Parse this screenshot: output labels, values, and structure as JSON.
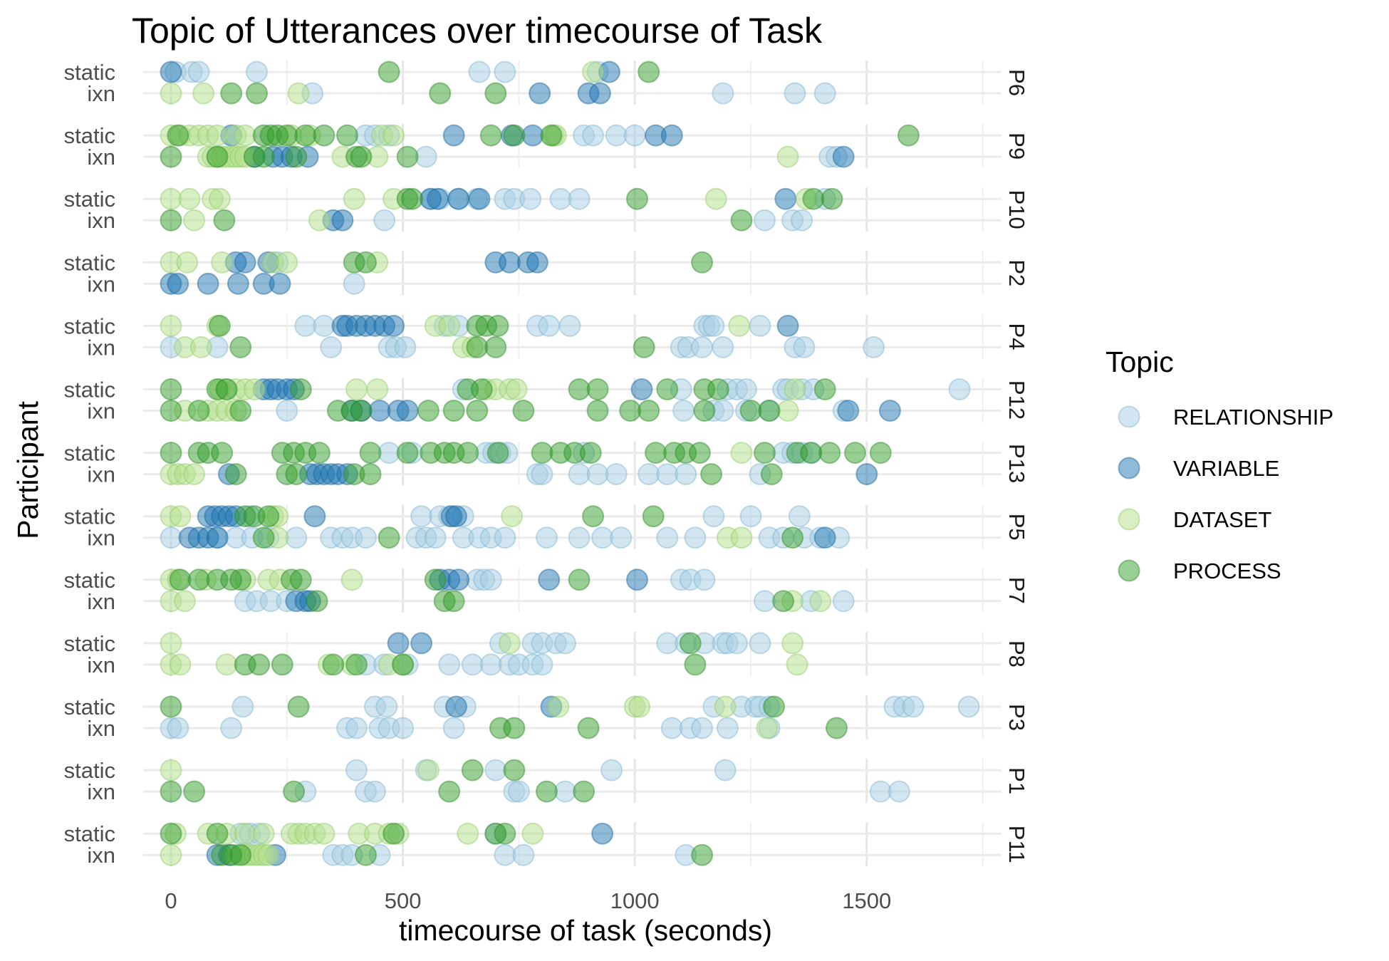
{
  "chart_data": {
    "type": "scatter",
    "title": "Topic of Utterances over timecourse of Task",
    "xlabel": "timecourse of task (seconds)",
    "ylabel": "Participant",
    "xlim": [
      -60,
      1790
    ],
    "xticks": [
      0,
      500,
      1000,
      1500
    ],
    "xtick_labels": [
      "0",
      "500",
      "1000",
      "1500"
    ],
    "grid": true,
    "legend": {
      "title": "Topic",
      "placement": "right",
      "entries": [
        "RELATIONSHIP",
        "VARIABLE",
        "DATASET",
        "PROCESS"
      ]
    },
    "colors": {
      "RELATIONSHIP": "#a6cee3",
      "VARIABLE": "#1f78b4",
      "DATASET": "#b2df8a",
      "PROCESS": "#33a02c"
    },
    "conditions": [
      "static",
      "ixn"
    ],
    "panels": [
      {
        "participant": "P6",
        "static": {
          "RELATIONSHIP": [
            10,
            45,
            60,
            185,
            665,
            720,
            920
          ],
          "VARIABLE": [
            0,
            945
          ],
          "DATASET": [
            910
          ],
          "PROCESS": [
            470,
            1030
          ]
        },
        "ixn": {
          "RELATIONSHIP": [
            305,
            1190,
            1345,
            1410
          ],
          "VARIABLE": [
            795,
            900,
            925
          ],
          "DATASET": [
            0,
            70,
            275
          ],
          "PROCESS": [
            130,
            185,
            580,
            700
          ]
        }
      },
      {
        "participant": "P9",
        "static": {
          "RELATIONSHIP": [
            420,
            440,
            470,
            890,
            910,
            960,
            1000
          ],
          "VARIABLE": [
            130,
            610,
            735,
            780,
            1045,
            1080
          ],
          "DATASET": [
            0,
            20,
            40,
            60,
            80,
            100,
            140,
            160,
            260,
            300,
            455,
            480,
            825,
            830
          ],
          "PROCESS": [
            15,
            200,
            215,
            230,
            250,
            290,
            330,
            380,
            690,
            740,
            820,
            1590
          ]
        },
        "ixn": {
          "RELATIONSHIP": [
            550,
            1420,
            1435
          ],
          "VARIABLE": [
            180,
            220,
            240,
            260,
            295,
            1450
          ],
          "DATASET": [
            80,
            90,
            100,
            110,
            120,
            130,
            140,
            150,
            160,
            370,
            445,
            1330
          ],
          "PROCESS": [
            0,
            100,
            180,
            200,
            270,
            400,
            410,
            510
          ]
        }
      },
      {
        "participant": "P10",
        "static": {
          "RELATIONSHIP": [
            560,
            580,
            620,
            660,
            720,
            740,
            775,
            840,
            880,
            1410
          ],
          "VARIABLE": [
            560,
            575,
            620,
            665,
            1325
          ],
          "DATASET": [
            0,
            40,
            90,
            105,
            395,
            480,
            1175,
            1370
          ],
          "PROCESS": [
            510,
            520,
            1005,
            1385,
            1425
          ]
        },
        "ixn": {
          "RELATIONSHIP": [
            460,
            1280,
            1340,
            1360
          ],
          "VARIABLE": [
            350,
            370
          ],
          "DATASET": [
            50,
            320
          ],
          "PROCESS": [
            0,
            115,
            1230
          ]
        }
      },
      {
        "participant": "P2",
        "static": {
          "RELATIONSHIP": [
            230
          ],
          "VARIABLE": [
            140,
            160,
            210,
            700,
            730,
            770,
            790
          ],
          "DATASET": [
            0,
            35,
            110,
            220,
            250,
            445
          ],
          "PROCESS": [
            395,
            420,
            1145
          ]
        },
        "ixn": {
          "RELATIONSHIP": [
            395
          ],
          "VARIABLE": [
            0,
            15,
            80,
            145,
            200,
            235
          ],
          "DATASET": [],
          "PROCESS": []
        }
      },
      {
        "participant": "P4",
        "static": {
          "RELATIONSHIP": [
            290,
            330,
            590,
            620,
            790,
            815,
            860,
            1150,
            1160,
            1170,
            1270
          ],
          "VARIABLE": [
            370,
            380,
            400,
            420,
            440,
            460,
            480,
            1330
          ],
          "DATASET": [
            0,
            100,
            570,
            600,
            1225
          ],
          "PROCESS": [
            105,
            660,
            680,
            705
          ]
        },
        "ixn": {
          "RELATIONSHIP": [
            0,
            100,
            345,
            470,
            485,
            505,
            1100,
            1115,
            1145,
            1190,
            1345,
            1365,
            1515
          ],
          "VARIABLE": [],
          "DATASET": [
            30,
            65,
            630,
            650
          ],
          "PROCESS": [
            150,
            660,
            700,
            1020
          ]
        }
      },
      {
        "participant": "P12",
        "static": {
          "RELATIONSHIP": [
            630,
            1100,
            1200,
            1220,
            1240,
            1320,
            1330,
            1360,
            1385,
            1700
          ],
          "VARIABLE": [
            200,
            215,
            230,
            250,
            265,
            1015
          ],
          "DATASET": [
            105,
            120,
            140,
            160,
            180,
            400,
            445,
            680,
            700,
            730,
            745,
            1345
          ],
          "PROCESS": [
            0,
            100,
            120,
            280,
            640,
            670,
            880,
            920,
            1070,
            1150,
            1180,
            1410
          ]
        },
        "ixn": {
          "RELATIONSHIP": [
            250,
            1105,
            1170,
            1190,
            1240,
            1290,
            1450
          ],
          "VARIABLE": [
            390,
            410,
            450,
            490,
            510,
            1460,
            1550
          ],
          "DATASET": [
            30,
            80,
            100,
            120,
            140,
            1330
          ],
          "PROCESS": [
            0,
            60,
            150,
            360,
            390,
            410,
            555,
            610,
            660,
            760,
            920,
            990,
            1030,
            1150,
            1250,
            1290
          ]
        }
      },
      {
        "participant": "P13",
        "static": {
          "RELATIONSHIP": [
            470,
            520,
            680,
            695,
            710,
            725,
            890,
            1320,
            1340,
            1360,
            1380
          ],
          "VARIABLE": [],
          "DATASET": [
            1230
          ],
          "PROCESS": [
            0,
            60,
            80,
            110,
            240,
            265,
            290,
            320,
            430,
            510,
            560,
            590,
            610,
            640,
            705,
            800,
            840,
            870,
            905,
            1045,
            1085,
            1110,
            1140,
            1280,
            1350,
            1380,
            1420,
            1475,
            1530
          ]
        },
        "ixn": {
          "RELATIONSHIP": [
            790,
            800,
            880,
            920,
            960,
            1030,
            1070,
            1110,
            1270
          ],
          "VARIABLE": [
            125,
            300,
            315,
            330,
            345,
            360,
            380,
            1500
          ],
          "DATASET": [
            0,
            15,
            30,
            50
          ],
          "PROCESS": [
            140,
            250,
            270,
            395,
            430,
            1165,
            1295
          ]
        }
      },
      {
        "participant": "P5",
        "static": {
          "RELATIONSHIP": [
            170,
            540,
            580,
            600,
            630,
            1170,
            1250,
            1355
          ],
          "VARIABLE": [
            80,
            95,
            110,
            125,
            140,
            310,
            605,
            615
          ],
          "DATASET": [
            0,
            20,
            220,
            230,
            735
          ],
          "PROCESS": [
            160,
            180,
            210,
            910,
            1040
          ]
        },
        "ixn": {
          "RELATIONSHIP": [
            0,
            100,
            140,
            175,
            210,
            270,
            345,
            370,
            390,
            420,
            530,
            550,
            570,
            630,
            665,
            690,
            720,
            810,
            880,
            930,
            970,
            1070,
            1130,
            1290,
            1320,
            1365,
            1400,
            1440
          ],
          "VARIABLE": [
            40,
            60,
            80,
            100,
            1410
          ],
          "DATASET": [
            230,
            1200,
            1230
          ],
          "PROCESS": [
            200,
            470,
            1340
          ]
        }
      },
      {
        "participant": "P7",
        "static": {
          "RELATIONSHIP": [
            660,
            675,
            690,
            1100,
            1120,
            1150
          ],
          "VARIABLE": [
            580,
            600,
            620,
            815,
            1005
          ],
          "DATASET": [
            0,
            15,
            75,
            160,
            210,
            235,
            390
          ],
          "PROCESS": [
            20,
            60,
            100,
            130,
            150,
            260,
            280,
            570,
            880
          ]
        },
        "ixn": {
          "RELATIONSHIP": [
            160,
            185,
            215,
            250,
            1280,
            1380,
            1450
          ],
          "VARIABLE": [
            270,
            290,
            300
          ],
          "DATASET": [
            0,
            30,
            1340,
            1400
          ],
          "PROCESS": [
            315,
            590,
            610,
            1320
          ]
        }
      },
      {
        "participant": "P8",
        "static": {
          "RELATIONSHIP": [
            710,
            780,
            800,
            830,
            850,
            1070,
            1110,
            1150,
            1190,
            1200,
            1220,
            1270
          ],
          "VARIABLE": [
            490,
            540
          ],
          "DATASET": [
            0,
            730,
            1340
          ],
          "PROCESS": [
            1120
          ]
        },
        "ixn": {
          "RELATIONSHIP": [
            420,
            460,
            510,
            600,
            650,
            690,
            730,
            750,
            780,
            800
          ],
          "VARIABLE": [],
          "DATASET": [
            0,
            20,
            120,
            340,
            390,
            470,
            500,
            1350
          ],
          "PROCESS": [
            160,
            190,
            240,
            350,
            400,
            500,
            1130
          ]
        }
      },
      {
        "participant": "P3",
        "static": {
          "RELATIONSHIP": [
            155,
            440,
            465,
            590,
            635,
            1170,
            1230,
            1260,
            1270,
            1290,
            1560,
            1580,
            1600,
            1720
          ],
          "VARIABLE": [
            615,
            820
          ],
          "DATASET": [
            835,
            1000,
            1010,
            1195
          ],
          "PROCESS": [
            0,
            275,
            1300
          ]
        },
        "ixn": {
          "RELATIONSHIP": [
            0,
            15,
            130,
            380,
            400,
            450,
            470,
            500,
            610,
            1080,
            1120,
            1145,
            1200,
            1290
          ],
          "VARIABLE": [],
          "DATASET": [
            1285
          ],
          "PROCESS": [
            710,
            740,
            900,
            1435
          ]
        }
      },
      {
        "participant": "P1",
        "static": {
          "RELATIONSHIP": [
            400,
            550,
            700,
            950,
            1195
          ],
          "VARIABLE": [],
          "DATASET": [
            0,
            555
          ],
          "PROCESS": [
            650,
            740
          ]
        },
        "ixn": {
          "RELATIONSHIP": [
            290,
            420,
            440,
            740,
            750,
            850,
            1530,
            1570
          ],
          "VARIABLE": [],
          "DATASET": [],
          "PROCESS": [
            0,
            50,
            265,
            600,
            810,
            890
          ]
        }
      },
      {
        "participant": "P11",
        "static": {
          "RELATIONSHIP": [
            150,
            170,
            190,
            700
          ],
          "VARIABLE": [
            930
          ],
          "DATASET": [
            10,
            80,
            120,
            160,
            200,
            260,
            275,
            290,
            310,
            330,
            405,
            440,
            470,
            490,
            640,
            780
          ],
          "PROCESS": [
            0,
            100,
            480,
            700,
            720
          ]
        },
        "ixn": {
          "RELATIONSHIP": [
            350,
            370,
            390,
            450,
            720,
            760,
            1110
          ],
          "VARIABLE": [
            100,
            125,
            225
          ],
          "DATASET": [
            0,
            140,
            160,
            170,
            180,
            190,
            200,
            210
          ],
          "PROCESS": [
            110,
            130,
            150,
            420,
            1145
          ]
        }
      }
    ]
  }
}
